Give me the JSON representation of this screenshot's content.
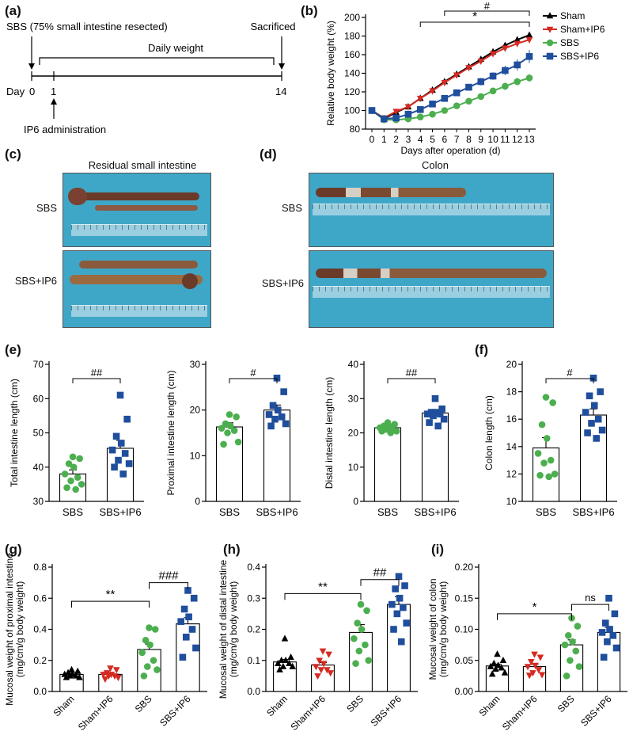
{
  "panel_labels": [
    "(a)",
    "(b)",
    "(c)",
    "(d)",
    "(e)",
    "(f)",
    "(g)",
    "(h)",
    "(i)"
  ],
  "timeline": {
    "surgery": "SBS (75% small intestine resected)",
    "daily": "Daily weight",
    "sacrificed": "Sacrificed",
    "day_label": "Day",
    "day0": "0",
    "day1": "1",
    "day14": "14",
    "ip6": "IP6 administration"
  },
  "photos": {
    "c_title": "Residual small intestine",
    "d_title": "Colon",
    "row_labels": [
      "SBS",
      "SBS+IP6"
    ]
  },
  "colors": {
    "sham": "#000000",
    "sham_ip6": "#d42a22",
    "sbs": "#4caf4f",
    "sbs_ip6": "#1f4e9c"
  },
  "chart_data": [
    {
      "id": "b",
      "type": "line",
      "ylabel": "Relative body weight (%)",
      "xlabel": "Days after operation (d)",
      "x": [
        0,
        1,
        2,
        3,
        4,
        5,
        6,
        7,
        8,
        9,
        10,
        11,
        12,
        13
      ],
      "ylim": [
        80,
        200
      ],
      "yticks": [
        80,
        100,
        120,
        140,
        160,
        180,
        200
      ],
      "series": [
        {
          "name": "Sham",
          "values": [
            100,
            91,
            98,
            104,
            113,
            122,
            131,
            139,
            147,
            155,
            163,
            170,
            176,
            181
          ],
          "err": [
            0,
            1,
            1,
            1,
            1,
            1,
            1,
            2,
            2,
            2,
            2,
            2,
            3,
            3
          ]
        },
        {
          "name": "Sham+IP6",
          "values": [
            100,
            92,
            99,
            104,
            113,
            121,
            130,
            138,
            146,
            153,
            161,
            167,
            172,
            176
          ],
          "err": [
            0,
            1,
            1,
            1,
            1,
            1,
            2,
            2,
            2,
            2,
            2,
            3,
            3,
            3
          ]
        },
        {
          "name": "SBS",
          "values": [
            100,
            90,
            90,
            91,
            93,
            96,
            100,
            105,
            110,
            115,
            121,
            126,
            131,
            135
          ],
          "err": [
            0,
            1,
            1,
            1,
            1,
            2,
            2,
            2,
            3,
            3,
            3,
            4,
            4,
            4
          ]
        },
        {
          "name": "SBS+IP6",
          "values": [
            100,
            91,
            92,
            96,
            101,
            107,
            113,
            119,
            125,
            131,
            137,
            143,
            149,
            158
          ],
          "err": [
            0,
            1,
            1,
            2,
            2,
            2,
            3,
            3,
            3,
            4,
            4,
            5,
            6,
            7
          ]
        }
      ],
      "annotations": [
        "*",
        "#"
      ]
    },
    {
      "id": "e1",
      "type": "bar",
      "ylabel": "Total intestine length (cm)",
      "categories": [
        "SBS",
        "SBS+IP6"
      ],
      "values": [
        38,
        45.5
      ],
      "err": [
        1.2,
        2.3
      ],
      "ylim": [
        30,
        70
      ],
      "yticks": [
        30,
        40,
        50,
        60,
        70
      ],
      "points": [
        [
          43,
          42.5,
          41,
          40,
          38,
          37,
          36,
          35,
          34,
          33.5
        ],
        [
          61,
          54,
          49,
          47,
          45,
          44,
          42,
          41,
          40,
          38
        ]
      ],
      "annotation": "##"
    },
    {
      "id": "e2",
      "type": "bar",
      "ylabel": "Proximal intestine length (cm)",
      "categories": [
        "SBS",
        "SBS+IP6"
      ],
      "values": [
        16.3,
        20
      ],
      "err": [
        0.9,
        1.1
      ],
      "ylim": [
        0,
        30
      ],
      "yticks": [
        0,
        10,
        20,
        30
      ],
      "points": [
        [
          19,
          18.5,
          17,
          16.5,
          16,
          15.5,
          15,
          13,
          12.5
        ],
        [
          27,
          24,
          21,
          20,
          19,
          18.5,
          18,
          17,
          16.5
        ]
      ],
      "annotation": "#"
    },
    {
      "id": "e3",
      "type": "bar",
      "ylabel": "Distal intestine length (cm)",
      "categories": [
        "SBS",
        "SBS+IP6"
      ],
      "values": [
        21.5,
        25.8
      ],
      "err": [
        0.4,
        0.9
      ],
      "ylim": [
        0,
        40
      ],
      "yticks": [
        0,
        10,
        20,
        30,
        40
      ],
      "points": [
        [
          23,
          22.5,
          22,
          22,
          21.5,
          21,
          21,
          20.5,
          20.5,
          20
        ],
        [
          30,
          27,
          26,
          26,
          25.5,
          25.5,
          25,
          24,
          23,
          22
        ]
      ],
      "annotation": "##"
    },
    {
      "id": "f",
      "type": "bar",
      "ylabel": "Colon length (cm)",
      "categories": [
        "SBS",
        "SBS+IP6"
      ],
      "values": [
        13.9,
        16.3
      ],
      "err": [
        0.75,
        0.45
      ],
      "ylim": [
        10,
        20
      ],
      "yticks": [
        10,
        12,
        14,
        16,
        18,
        20
      ],
      "points": [
        [
          17.6,
          17.2,
          15.6,
          14.6,
          13.5,
          13,
          12.8,
          12,
          11.9,
          11.8
        ],
        [
          19,
          18,
          17.7,
          17,
          16.5,
          16,
          15.7,
          15.2,
          15,
          14.6
        ]
      ],
      "annotation": "#"
    },
    {
      "id": "g",
      "type": "bar",
      "ylabel": "Mucosal weight of proximal intestine",
      "ylabel2": "(mg/cm/g body weight)",
      "categories": [
        "Sham",
        "Sham+IP6",
        "SBS",
        "SBS+IP6"
      ],
      "values": [
        0.11,
        0.11,
        0.27,
        0.435
      ],
      "err": [
        0.008,
        0.01,
        0.035,
        0.04
      ],
      "ylim": [
        0,
        0.8
      ],
      "yticks": [
        0.0,
        0.2,
        0.4,
        0.6,
        0.8
      ],
      "tick_format": 1,
      "points": [
        [
          0.14,
          0.13,
          0.12,
          0.11,
          0.11,
          0.1,
          0.1,
          0.09,
          0.09
        ],
        [
          0.15,
          0.14,
          0.12,
          0.11,
          0.11,
          0.1,
          0.1,
          0.09,
          0.08
        ],
        [
          0.41,
          0.4,
          0.33,
          0.3,
          0.25,
          0.2,
          0.16,
          0.14,
          0.1
        ],
        [
          0.65,
          0.6,
          0.53,
          0.48,
          0.45,
          0.4,
          0.35,
          0.28,
          0.22
        ]
      ],
      "annotations": [
        {
          "text": "**",
          "from": 0,
          "to": 2,
          "y": 0.58
        },
        {
          "text": "###",
          "from": 2,
          "to": 3,
          "y": 0.7
        }
      ]
    },
    {
      "id": "h",
      "type": "bar",
      "ylabel": "Mucosal weight of distal intestine",
      "ylabel2": "(mg/cm/g body weight)",
      "categories": [
        "Sham",
        "Sham+IP6",
        "SBS",
        "SBS+IP6"
      ],
      "values": [
        0.095,
        0.085,
        0.19,
        0.28
      ],
      "err": [
        0.008,
        0.008,
        0.025,
        0.025
      ],
      "ylim": [
        0,
        0.4
      ],
      "yticks": [
        0.0,
        0.1,
        0.2,
        0.3,
        0.4
      ],
      "tick_format": 1,
      "points": [
        [
          0.17,
          0.11,
          0.1,
          0.1,
          0.09,
          0.09,
          0.08,
          0.08,
          0.07
        ],
        [
          0.13,
          0.12,
          0.1,
          0.09,
          0.08,
          0.07,
          0.07,
          0.06,
          0.05
        ],
        [
          0.28,
          0.26,
          0.22,
          0.2,
          0.17,
          0.15,
          0.13,
          0.1,
          0.09
        ],
        [
          0.37,
          0.34,
          0.33,
          0.3,
          0.28,
          0.27,
          0.25,
          0.22,
          0.2,
          0.16
        ]
      ],
      "annotations": [
        {
          "text": "**",
          "from": 0,
          "to": 2,
          "y": 0.315
        },
        {
          "text": "##",
          "from": 2,
          "to": 3,
          "y": 0.36
        }
      ]
    },
    {
      "id": "i",
      "type": "bar",
      "ylabel": "Mucosal weight of colon",
      "ylabel2": "(mg/cm/g body weight)",
      "categories": [
        "Sham",
        "Sham+IP6",
        "SBS",
        "SBS+IP6"
      ],
      "values": [
        0.041,
        0.04,
        0.075,
        0.095
      ],
      "err": [
        0.003,
        0.004,
        0.008,
        0.008
      ],
      "ylim": [
        0,
        0.2
      ],
      "yticks": [
        0.0,
        0.05,
        0.1,
        0.15,
        0.2
      ],
      "tick_format": 2,
      "points": [
        [
          0.06,
          0.05,
          0.045,
          0.042,
          0.04,
          0.038,
          0.036,
          0.03,
          0.028
        ],
        [
          0.06,
          0.055,
          0.048,
          0.042,
          0.04,
          0.035,
          0.03,
          0.027,
          0.026
        ],
        [
          0.118,
          0.105,
          0.09,
          0.08,
          0.075,
          0.065,
          0.05,
          0.04,
          0.025
        ],
        [
          0.15,
          0.125,
          0.11,
          0.1,
          0.095,
          0.09,
          0.08,
          0.07,
          0.055
        ]
      ],
      "annotations": [
        {
          "text": "*",
          "from": 0,
          "to": 2,
          "y": 0.125
        },
        {
          "text": "ns",
          "from": 2,
          "to": 3,
          "y": 0.14
        }
      ]
    }
  ]
}
